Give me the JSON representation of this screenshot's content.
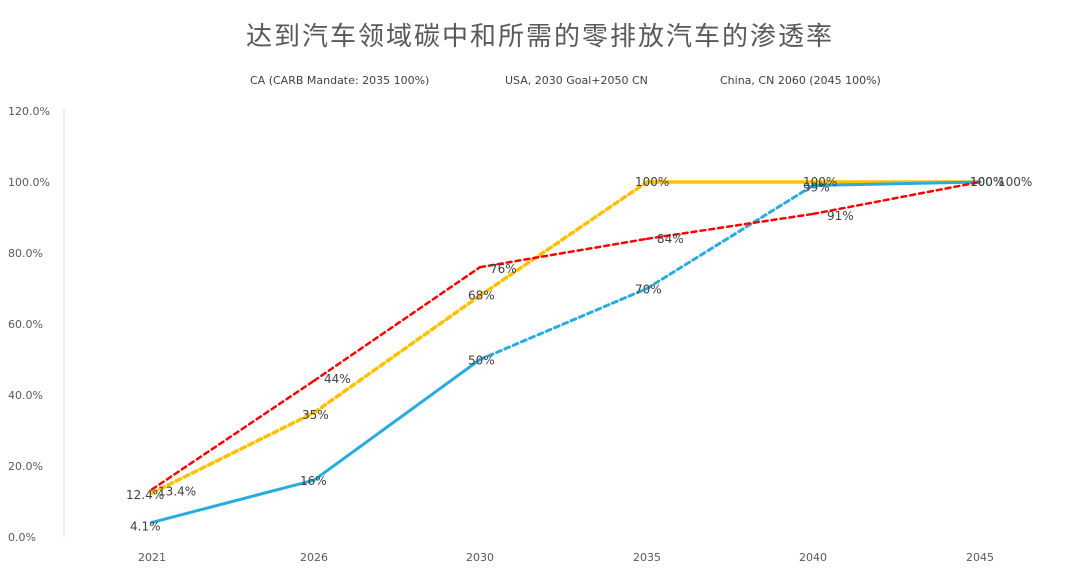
{
  "chart_data": {
    "type": "line",
    "title": "达到汽车领域碳中和所需的零排放汽车的渗透率",
    "x": [
      "2021",
      "2026",
      "2030",
      "2035",
      "2040",
      "2045"
    ],
    "ylim": [
      0,
      120
    ],
    "yticks": [
      "0.0%",
      "20.0%",
      "40.0%",
      "60.0%",
      "80.0%",
      "100.0%",
      "120.0%"
    ],
    "legend_position": "top",
    "grid": false,
    "series": [
      {
        "name": "CA (CARB Mandate: 2035 100%)",
        "color": "#FFC000",
        "values": [
          12.4,
          35,
          68,
          100,
          100,
          100
        ],
        "labels": [
          "12.4%",
          "35%",
          "68%",
          "100%",
          "100%",
          "100%"
        ]
      },
      {
        "name": "USA, 2030 Goal+2050 CN",
        "color": "#29ABE2",
        "values": [
          4.1,
          16,
          50,
          70,
          99,
          100
        ],
        "labels": [
          "4.1%",
          "16%",
          "50%",
          "70%",
          "99%",
          "100%"
        ]
      },
      {
        "name": "China, CN 2060 (2045 100%)",
        "color": "#FF0000",
        "values": [
          13.4,
          44,
          76,
          84,
          91,
          100
        ],
        "labels": [
          "13.4%",
          "44%",
          "76%",
          "84%",
          "91%",
          "100%"
        ]
      }
    ],
    "extra_segment_color": "#70AD47"
  }
}
